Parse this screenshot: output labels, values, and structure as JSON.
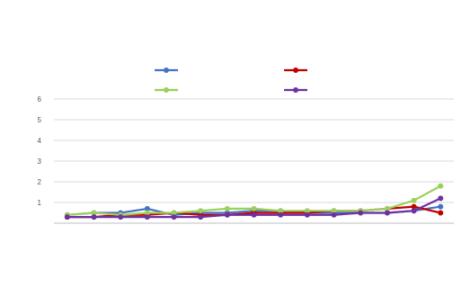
{
  "chart_data": {
    "type": "line",
    "title": "",
    "subtitle": "",
    "ylabel": "",
    "xlabel": "",
    "ylim": [
      0,
      6
    ],
    "yticks": [
      1,
      2,
      3,
      4,
      5,
      6
    ],
    "grid": true,
    "legend_placement": "top",
    "categories": [
      "",
      "",
      "",
      "",
      "",
      "",
      "",
      "",
      "",
      "",
      "",
      "",
      "",
      "",
      ""
    ],
    "series": [
      {
        "name": "",
        "color": "#4472c4",
        "values": [
          0.4,
          0.5,
          0.5,
          0.7,
          0.4,
          0.5,
          0.5,
          0.6,
          0.6,
          0.5,
          0.5,
          0.5,
          0.5,
          0.6,
          0.8
        ]
      },
      {
        "name": "",
        "color": "#c00000",
        "values": [
          0.3,
          0.3,
          0.4,
          0.4,
          0.5,
          0.4,
          0.4,
          0.5,
          0.5,
          0.5,
          0.6,
          0.6,
          0.7,
          0.8,
          0.5
        ]
      },
      {
        "name": "",
        "color": "#9bd05a",
        "values": [
          0.4,
          0.5,
          0.4,
          0.5,
          0.5,
          0.6,
          0.7,
          0.7,
          0.6,
          0.6,
          0.6,
          0.6,
          0.7,
          1.1,
          1.8
        ]
      },
      {
        "name": "",
        "color": "#7030a0",
        "values": [
          0.3,
          0.3,
          0.3,
          0.3,
          0.3,
          0.3,
          0.4,
          0.4,
          0.4,
          0.4,
          0.4,
          0.5,
          0.5,
          0.6,
          1.2
        ]
      }
    ]
  }
}
